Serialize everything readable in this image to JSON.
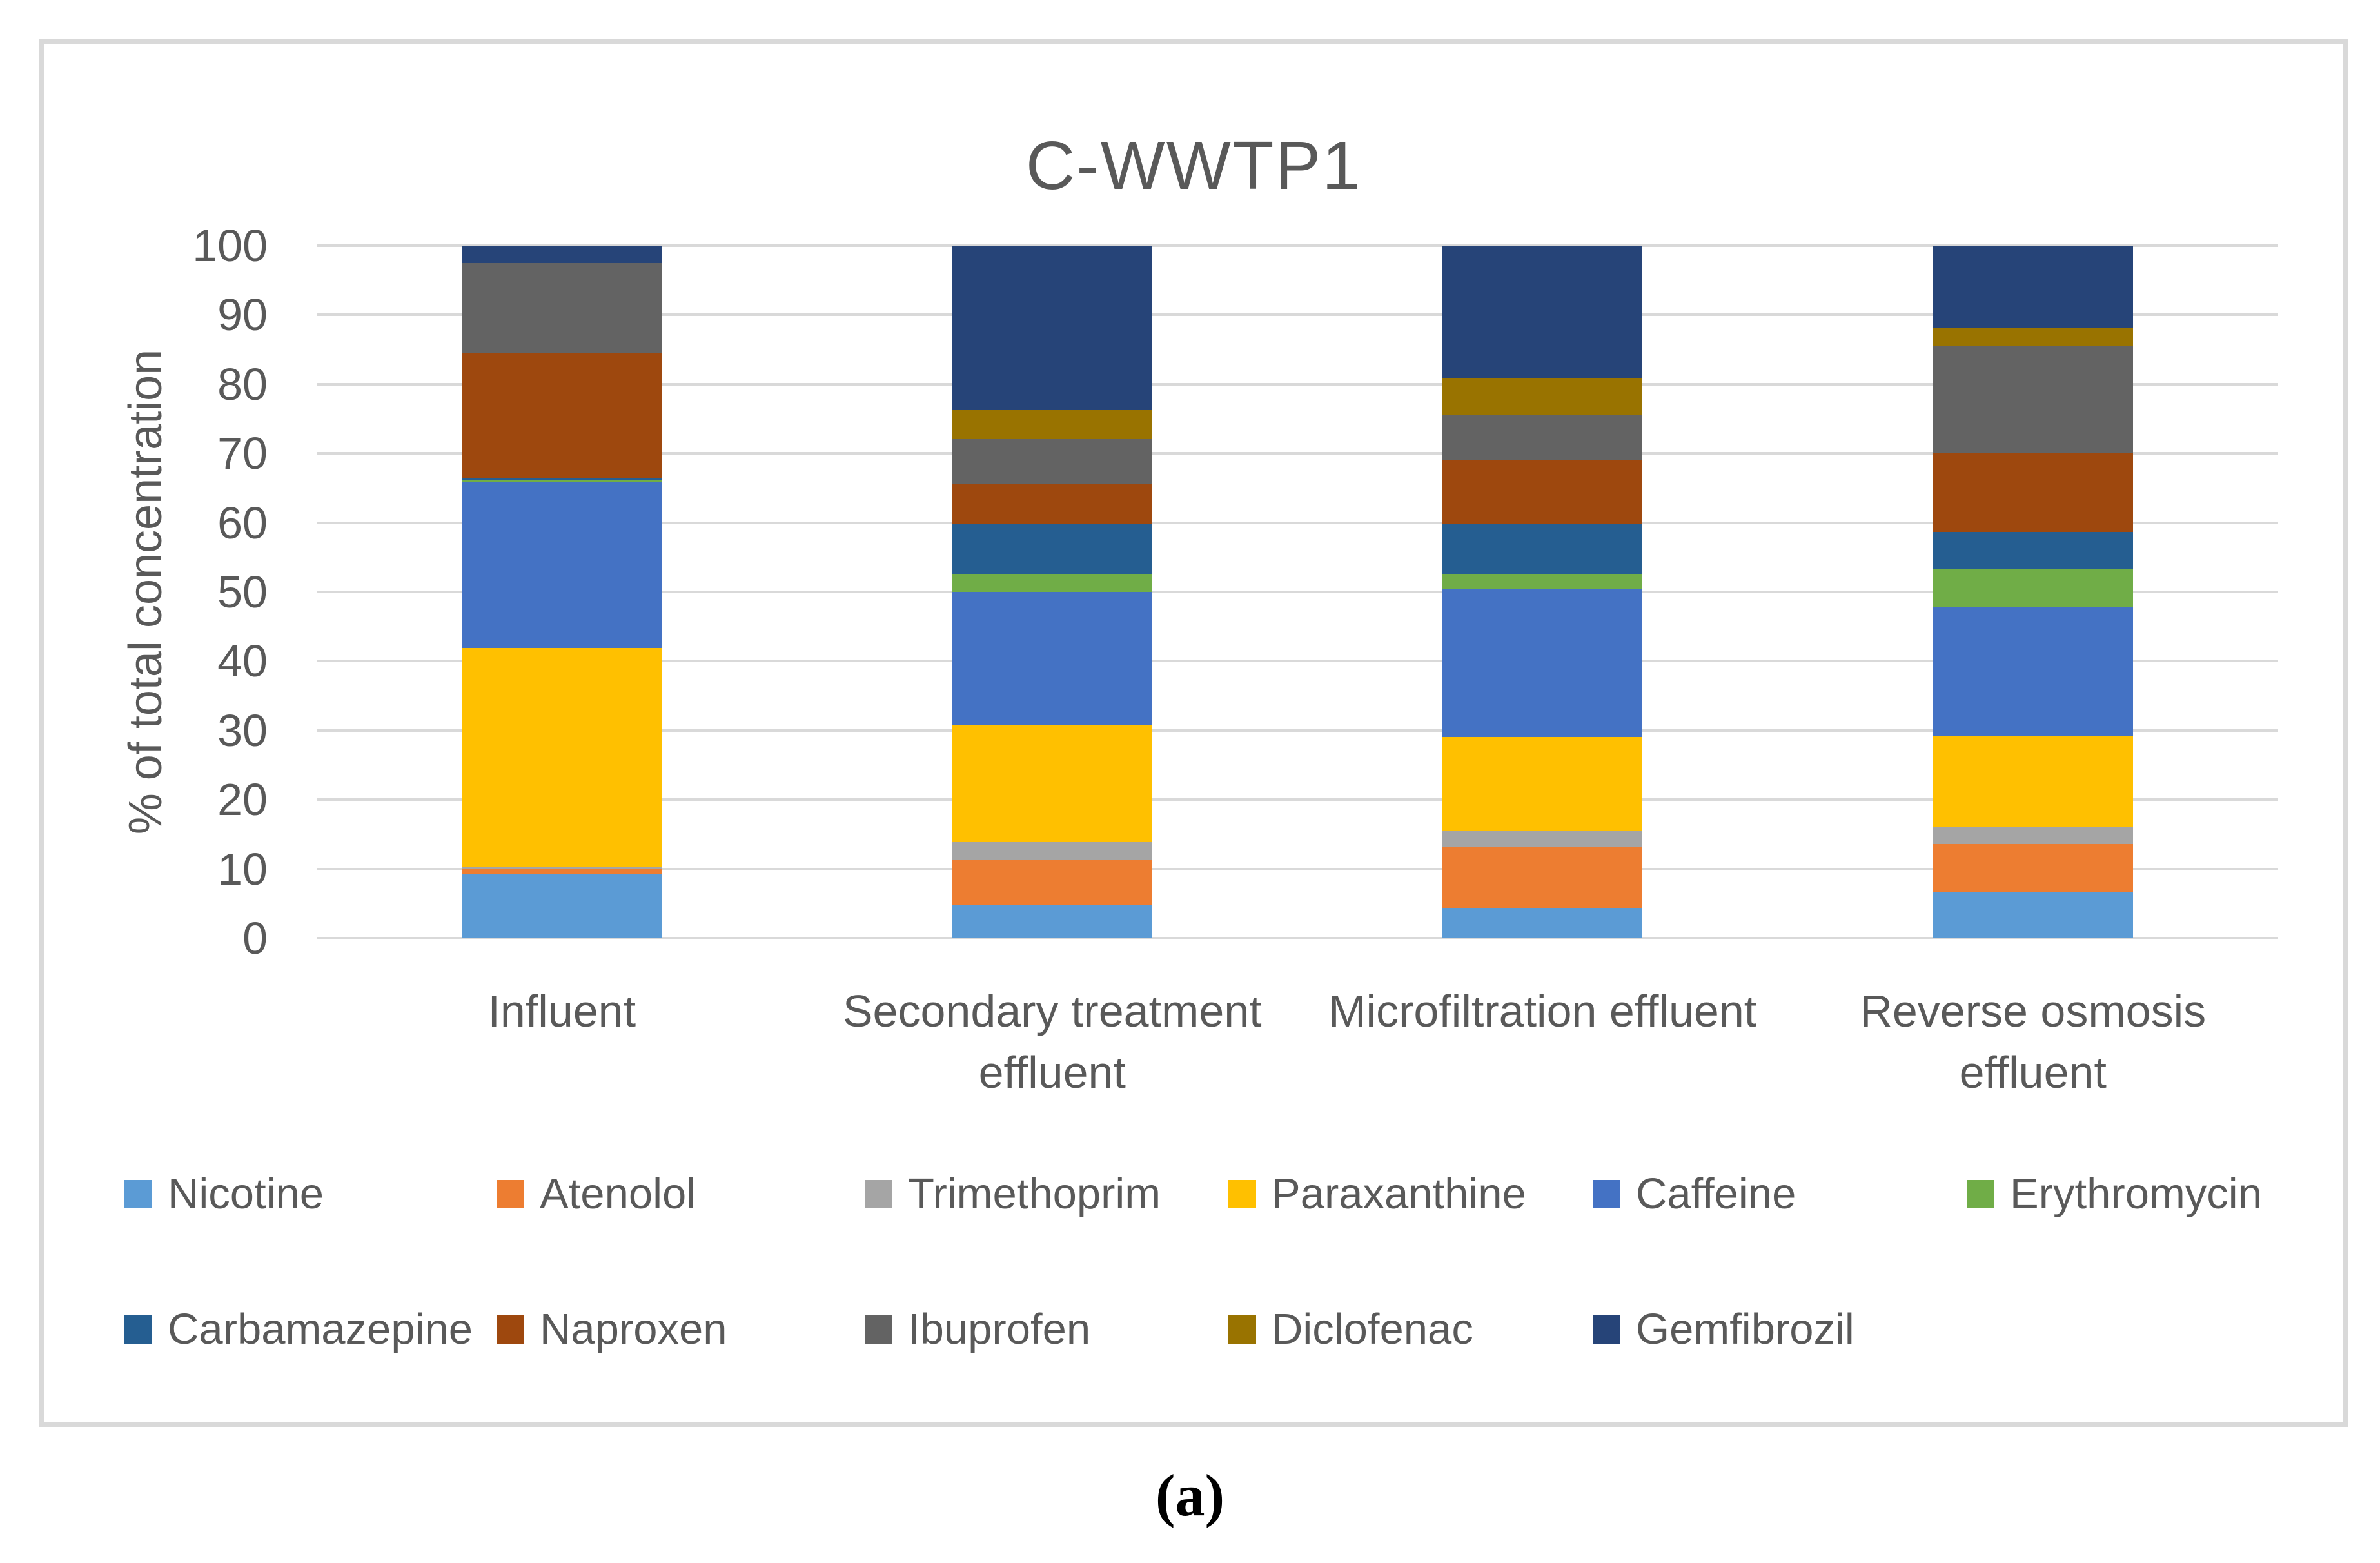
{
  "caption": "(a)",
  "chart_data": {
    "type": "bar",
    "stacked": true,
    "title": "C-WWTP1",
    "xlabel": "",
    "ylabel": "% of total concentration",
    "units": "percent",
    "ylim": [
      0,
      100
    ],
    "yticks": [
      0,
      10,
      20,
      30,
      40,
      50,
      60,
      70,
      80,
      90,
      100
    ],
    "grid": "horizontal",
    "legend_position": "bottom",
    "legend_rows": [
      6,
      5
    ],
    "categories": [
      "Influent",
      "Secondary treatment effluent",
      "Microfiltration effluent",
      "Reverse osmosis effluent"
    ],
    "series": [
      {
        "name": "Nicotine",
        "color": "#5B9BD5",
        "values": [
          9.3,
          4.8,
          4.4,
          6.6
        ]
      },
      {
        "name": "Atenolol",
        "color": "#ED7D31",
        "values": [
          0.8,
          6.6,
          8.8,
          7.0
        ]
      },
      {
        "name": "Trimethoprim",
        "color": "#A5A5A5",
        "values": [
          0.2,
          2.5,
          2.3,
          2.5
        ]
      },
      {
        "name": "Paraxanthine",
        "color": "#FFC000",
        "values": [
          31.6,
          16.8,
          13.6,
          13.1
        ]
      },
      {
        "name": "Caffeine",
        "color": "#4472C4",
        "values": [
          24.0,
          19.3,
          21.4,
          18.7
        ]
      },
      {
        "name": "Erythromycin",
        "color": "#70AD47",
        "values": [
          0.2,
          2.6,
          2.1,
          5.4
        ]
      },
      {
        "name": "Carbamazepine",
        "color": "#255E91",
        "values": [
          0.3,
          7.2,
          7.2,
          5.4
        ]
      },
      {
        "name": "Naproxen",
        "color": "#9E480E",
        "values": [
          18.1,
          5.8,
          9.3,
          11.4
        ]
      },
      {
        "name": "Ibuprofen",
        "color": "#636363",
        "values": [
          13.0,
          6.5,
          6.5,
          15.4
        ]
      },
      {
        "name": "Diclofenac",
        "color": "#997300",
        "values": [
          0.0,
          4.2,
          5.3,
          2.6
        ]
      },
      {
        "name": "Gemfibrozil",
        "color": "#264478",
        "values": [
          2.5,
          23.7,
          19.1,
          11.9
        ]
      }
    ]
  },
  "colors": {
    "text": "#595959",
    "gridline": "#D9D9D9",
    "border": "#D9D9D9",
    "caption_text": "#000000"
  }
}
